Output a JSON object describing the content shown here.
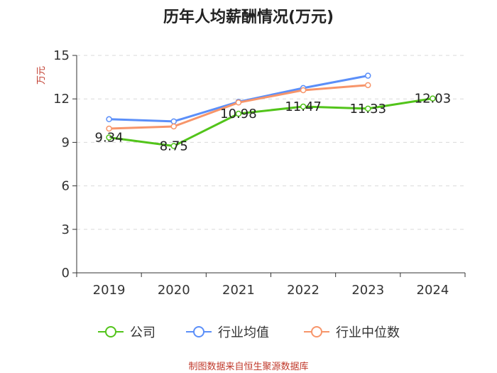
{
  "chart_data": {
    "type": "line",
    "title": "历年人均薪酬情况(万元)",
    "ylabel": "万元",
    "xlabel": "",
    "categories": [
      "2019",
      "2020",
      "2021",
      "2022",
      "2023",
      "2024"
    ],
    "ylim": [
      0,
      15
    ],
    "yticks": [
      0,
      3,
      6,
      9,
      12,
      15
    ],
    "grid": true,
    "legend_position": "bottom",
    "series": [
      {
        "name": "公司",
        "color": "#52c41a",
        "values": [
          9.34,
          8.75,
          10.98,
          11.47,
          11.33,
          12.03
        ],
        "show_labels": true
      },
      {
        "name": "行业均值",
        "color": "#5b8ff9",
        "values": [
          10.6,
          10.45,
          11.8,
          12.75,
          13.6,
          null
        ],
        "show_labels": false
      },
      {
        "name": "行业中位数",
        "color": "#f7956a",
        "values": [
          9.95,
          10.1,
          11.75,
          12.6,
          12.95,
          null
        ],
        "show_labels": false
      }
    ],
    "source": "制图数据来自恒生聚源数据库"
  }
}
